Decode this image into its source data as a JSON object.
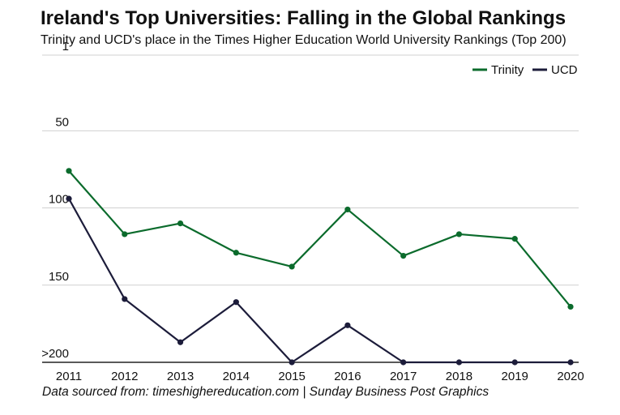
{
  "header": {
    "title": "Ireland's Top Universities: Falling in the Global Rankings",
    "subtitle": "Trinity and UCD's place in the Times Higher Education World University Rankings (Top 200)"
  },
  "footer": {
    "source": "Data sourced from: timeshighereducation.com | Sunday Business Post Graphics"
  },
  "chart_data": {
    "type": "line",
    "x": [
      "2011",
      "2012",
      "2013",
      "2014",
      "2015",
      "2016",
      "2017",
      "2018",
      "2019",
      "2020"
    ],
    "y_ticks": [
      {
        "value": 1,
        "label": "1"
      },
      {
        "value": 50,
        "label": "50"
      },
      {
        "value": 100,
        "label": "100"
      },
      {
        "value": 150,
        "label": "150"
      },
      {
        "value": 200,
        "label": ">200"
      }
    ],
    "ylim": [
      1,
      200
    ],
    "y_inverted": true,
    "grid": true,
    "legend_position": "top-right",
    "series": [
      {
        "name": "Trinity",
        "color": "#0b6b2c",
        "values": [
          76,
          117,
          110,
          129,
          138,
          101,
          131,
          117,
          120,
          164
        ]
      },
      {
        "name": "UCD",
        "color": "#1c1c3a",
        "values": [
          94,
          159,
          187,
          161,
          200,
          176,
          200,
          200,
          200,
          200
        ]
      }
    ]
  }
}
